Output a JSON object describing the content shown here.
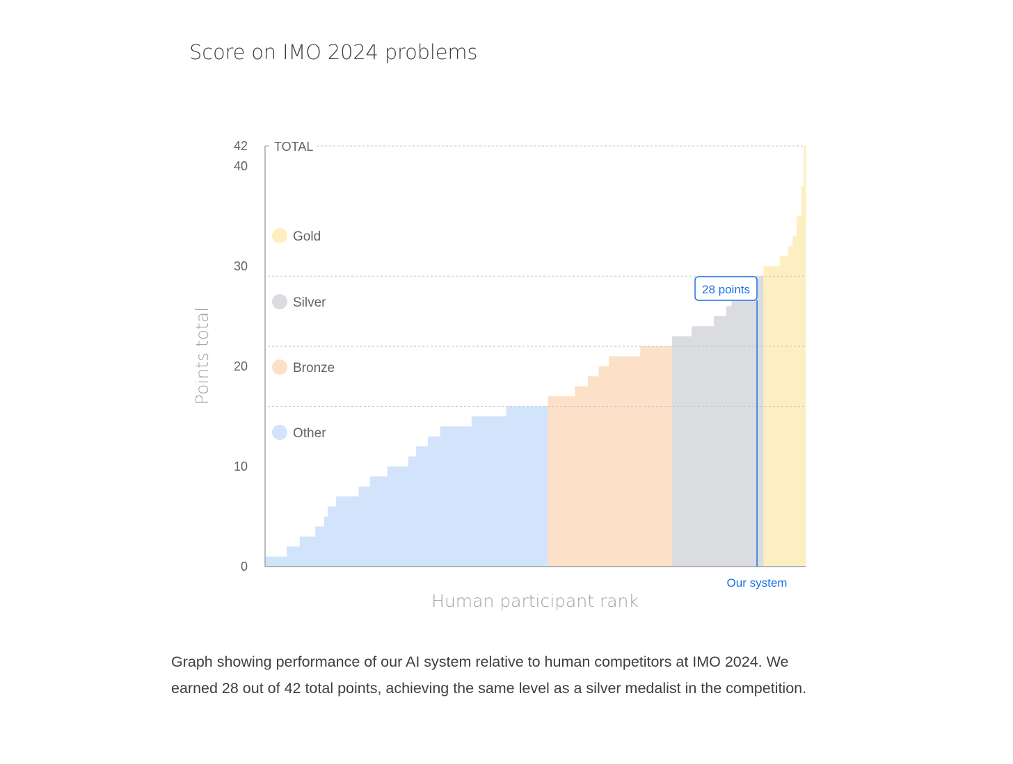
{
  "title": "Score on IMO 2024 problems",
  "caption": "Graph showing performance of our AI system relative to human competitors at IMO 2024. We earned 28 out of 42 total points, achieving the same level as a silver medalist in the competition.",
  "chart_data": {
    "type": "bar",
    "title": "Score on IMO 2024 problems",
    "xlabel": "Human participant rank",
    "ylabel": "Points total",
    "ylim": [
      0,
      42
    ],
    "yticks": [
      0,
      10,
      20,
      30,
      40,
      42
    ],
    "total_label": "TOTAL",
    "thresholds": [
      {
        "name": "Bronze",
        "value": 16
      },
      {
        "name": "Silver",
        "value": 22
      },
      {
        "name": "Gold",
        "value": 29
      },
      {
        "name": "TOTAL",
        "value": 42
      }
    ],
    "legend": [
      {
        "name": "Gold",
        "color": "#feefc3"
      },
      {
        "name": "Silver",
        "color": "#dadce0"
      },
      {
        "name": "Bronze",
        "color": "#fce0c8"
      },
      {
        "name": "Other",
        "color": "#d2e3fc"
      }
    ],
    "series": [
      {
        "name": "Other",
        "color": "#d2e3fc",
        "steps": [
          {
            "rank": 0.0,
            "value": 1
          },
          {
            "rank": 4.0,
            "value": 2
          },
          {
            "rank": 6.4,
            "value": 3
          },
          {
            "rank": 9.3,
            "value": 4
          },
          {
            "rank": 10.9,
            "value": 5
          },
          {
            "rank": 11.6,
            "value": 6
          },
          {
            "rank": 13.1,
            "value": 7
          },
          {
            "rank": 17.3,
            "value": 8
          },
          {
            "rank": 19.4,
            "value": 9
          },
          {
            "rank": 22.6,
            "value": 10
          },
          {
            "rank": 26.5,
            "value": 11
          },
          {
            "rank": 27.9,
            "value": 12
          },
          {
            "rank": 30.1,
            "value": 13
          },
          {
            "rank": 32.4,
            "value": 14
          },
          {
            "rank": 38.2,
            "value": 15
          },
          {
            "rank": 44.6,
            "value": 16
          },
          {
            "rank": 52.3,
            "value": 16
          }
        ]
      },
      {
        "name": "Bronze",
        "color": "#fce0c8",
        "steps": [
          {
            "rank": 52.3,
            "value": 17
          },
          {
            "rank": 57.3,
            "value": 18
          },
          {
            "rank": 59.7,
            "value": 19
          },
          {
            "rank": 61.7,
            "value": 20
          },
          {
            "rank": 63.6,
            "value": 21
          },
          {
            "rank": 69.4,
            "value": 22
          },
          {
            "rank": 75.3,
            "value": 22
          }
        ]
      },
      {
        "name": "Silver",
        "color": "#dadce0",
        "steps": [
          {
            "rank": 75.3,
            "value": 23
          },
          {
            "rank": 78.9,
            "value": 24
          },
          {
            "rank": 83.0,
            "value": 25
          },
          {
            "rank": 85.3,
            "value": 26
          },
          {
            "rank": 86.3,
            "value": 27
          },
          {
            "rank": 89.7,
            "value": 29
          },
          {
            "rank": 92.2,
            "value": 29
          }
        ]
      },
      {
        "name": "Gold",
        "color": "#feefc3",
        "steps": [
          {
            "rank": 92.2,
            "value": 30
          },
          {
            "rank": 95.2,
            "value": 31
          },
          {
            "rank": 96.7,
            "value": 32
          },
          {
            "rank": 97.6,
            "value": 33
          },
          {
            "rank": 98.3,
            "value": 35
          },
          {
            "rank": 99.2,
            "value": 38
          },
          {
            "rank": 99.6,
            "value": 42
          },
          {
            "rank": 100.0,
            "value": 42
          }
        ]
      }
    ],
    "our_system": {
      "label": "Our system",
      "value": 28,
      "annotation": "28 points",
      "rank": 91.0,
      "color": "#1a73e8"
    }
  }
}
